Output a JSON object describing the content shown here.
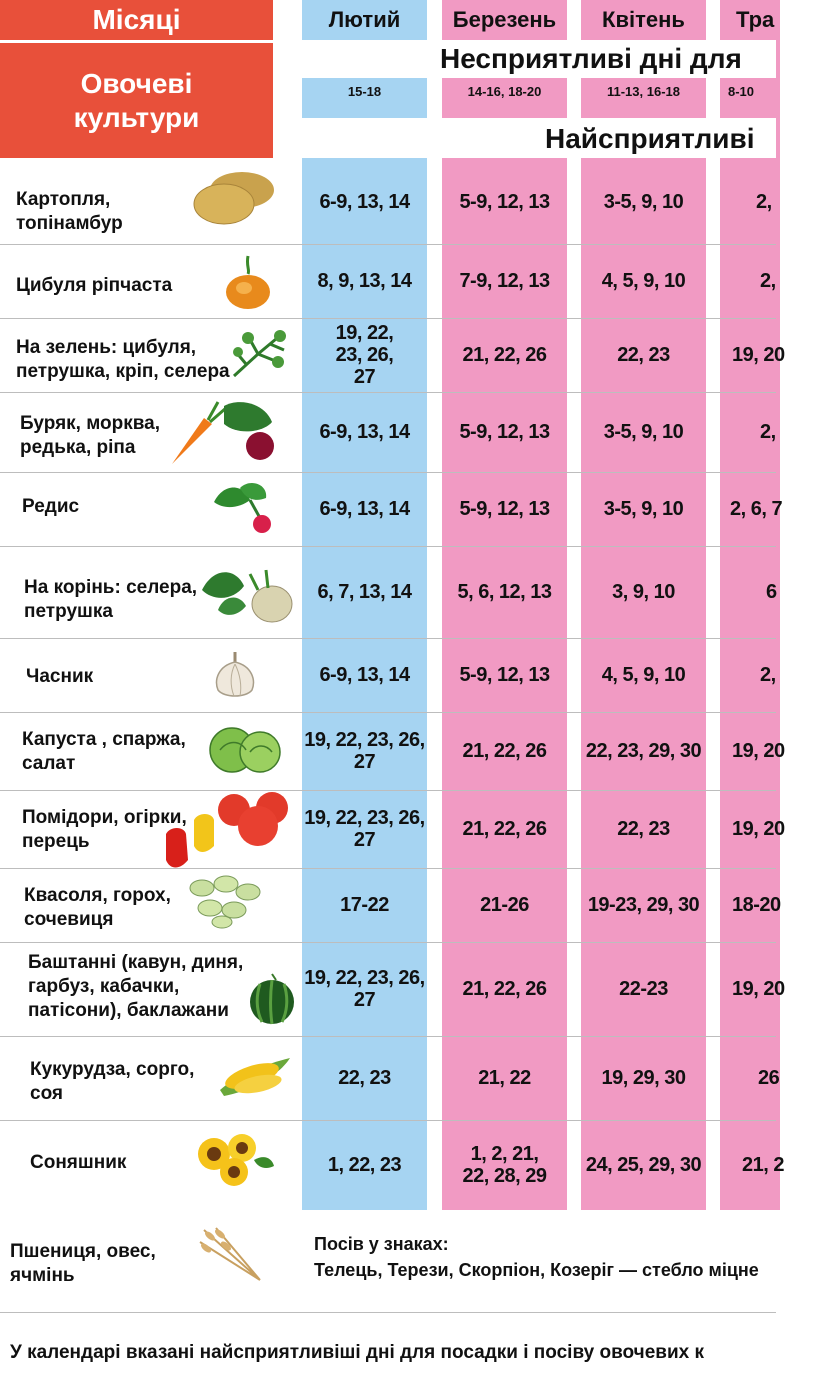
{
  "header": {
    "months_label": "Місяці",
    "crops_label": "Овочеві культури",
    "unfavorable_banner": "Несприятливі дні для",
    "favorable_banner": "Найсприятливі"
  },
  "months": [
    {
      "name": "Лютий",
      "unfavorable": "15-18"
    },
    {
      "name": "Березень",
      "unfavorable": "14-16, 18-20"
    },
    {
      "name": "Квітень",
      "unfavorable": "11-13, 16-18"
    },
    {
      "name": "Тра",
      "unfavorable": "8-10"
    }
  ],
  "rows": [
    {
      "crop": "Картопля, топінамбур",
      "icon": "potato-icon",
      "days": [
        "6-9, 13, 14",
        "5-9, 12, 13",
        "3-5, 9, 10",
        "2,"
      ]
    },
    {
      "crop": "Цибуля ріпчаста",
      "icon": "onion-icon",
      "days": [
        "8, 9, 13, 14",
        "7-9, 12, 13",
        "4, 5, 9, 10",
        "2,"
      ]
    },
    {
      "crop": "На зелень: цибуля, петрушка, кріп, селера",
      "icon": "dill-icon",
      "days": [
        "19, 22, 23, 26, 27",
        "21, 22, 26",
        "22, 23",
        "19, 20"
      ]
    },
    {
      "crop": "Буряк, морква, редька, ріпа",
      "icon": "beet-carrot-icon",
      "days": [
        "6-9, 13, 14",
        "5-9, 12, 13",
        "3-5, 9, 10",
        "2,"
      ]
    },
    {
      "crop": "Редис",
      "icon": "radish-icon",
      "days": [
        "6-9, 13, 14",
        "5-9, 12, 13",
        "3-5, 9, 10",
        "2, 6, 7"
      ]
    },
    {
      "crop": "На корінь: селера, петрушка",
      "icon": "celery-root-icon",
      "days": [
        "6, 7, 13, 14",
        "5, 6, 12, 13",
        "3, 9, 10",
        "6"
      ]
    },
    {
      "crop": "Часник",
      "icon": "garlic-icon",
      "days": [
        "6-9, 13, 14",
        "5-9, 12, 13",
        "4, 5, 9, 10",
        "2,"
      ]
    },
    {
      "crop": "Капуста , спаржа, салат",
      "icon": "cabbage-icon",
      "days": [
        "19, 22, 23, 26, 27",
        "21, 22, 26",
        "22, 23, 29, 30",
        "19, 20"
      ]
    },
    {
      "crop": "Помідори, огірки, перець",
      "icon": "tomato-pepper-icon",
      "days": [
        "19, 22, 23, 26, 27",
        "21, 22, 26",
        "22, 23",
        "19, 20"
      ]
    },
    {
      "crop": "Квасоля, горох, сочевиця",
      "icon": "beans-icon",
      "days": [
        "17-22",
        "21-26",
        "19-23, 29, 30",
        "18-20"
      ]
    },
    {
      "crop": "Баштанні (кавун, диня, гарбуз, кабачки, патісони), баклажани",
      "icon": "watermelon-icon",
      "days": [
        "19, 22, 23, 26, 27",
        "21, 22, 26",
        "22-23",
        "19, 20"
      ]
    },
    {
      "crop": "Кукурудза, сорго, соя",
      "icon": "corn-icon",
      "days": [
        "22, 23",
        "21, 22",
        "19, 29, 30",
        "26"
      ]
    },
    {
      "crop": "Соняшник",
      "icon": "sunflower-icon",
      "days": [
        "1, 22, 23",
        "1, 2, 21, 22, 28, 29",
        "24, 25, 29, 30",
        "21, 2"
      ]
    }
  ],
  "grain": {
    "crop": "Пшениця, овес, ячмінь",
    "icon": "wheat-icon",
    "title": "Посів у знаках:",
    "text": "Телець, Терези, Скорпіон, Козеріг — стебло міцне"
  },
  "footnote": "У календарі вказані найсприятливіші дні для посадки і посіву овочевих к",
  "colors": {
    "header_red": "#e8503a",
    "winter_blue": "#a6d4f2",
    "spring_pink": "#f19ac3"
  }
}
